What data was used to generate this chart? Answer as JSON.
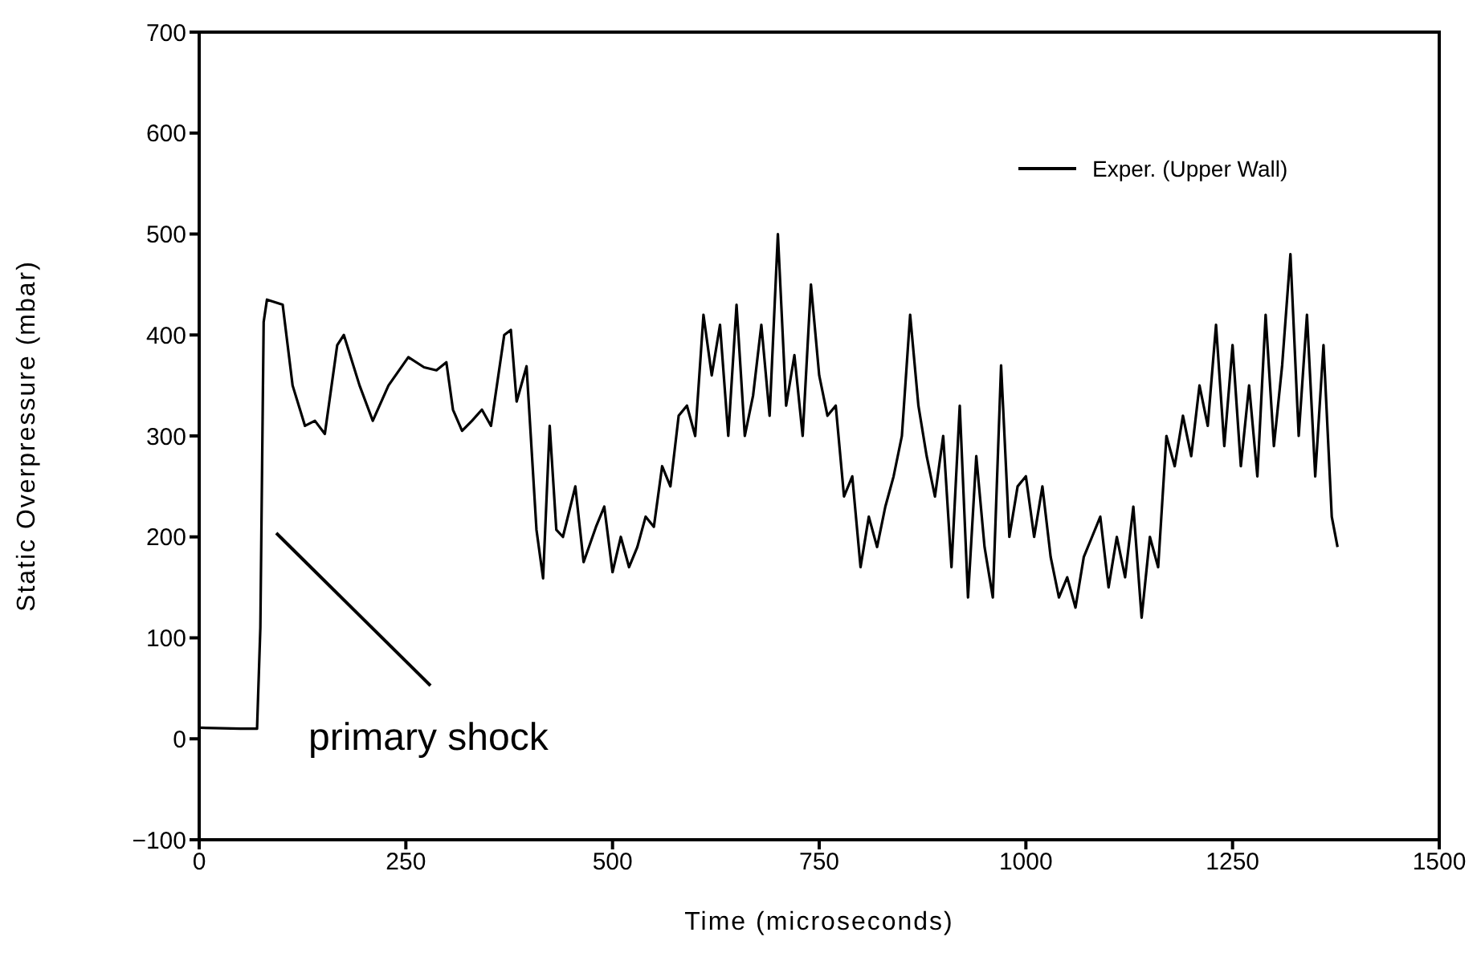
{
  "chart_data": {
    "type": "line",
    "xlabel": "Time (microseconds)",
    "ylabel": "Static Overpressure (mbar)",
    "xlim": [
      0,
      1500
    ],
    "xticks": [
      0,
      250,
      500,
      750,
      1000,
      1250,
      1500
    ],
    "ylim": [
      -100,
      700
    ],
    "yticks": [
      -100,
      0,
      100,
      200,
      300,
      400,
      500,
      600,
      700
    ],
    "legend": "top right",
    "marker": "none",
    "line_style": "solid",
    "annotations": [
      "primary shock"
    ],
    "series": [
      {
        "name": "Exper. (Upper Wall)",
        "color": "#000000",
        "x": [
          0,
          50,
          70,
          74,
          78,
          82,
          101,
          113,
          128,
          140,
          152,
          167,
          175,
          194,
          210,
          229,
          253,
          272,
          287,
          299,
          307,
          318,
          330,
          342,
          353,
          369,
          377,
          384,
          396,
          408,
          416,
          424,
          432,
          440,
          455,
          465,
          480,
          490,
          500,
          510,
          520,
          530,
          540,
          550,
          560,
          570,
          580,
          590,
          600,
          610,
          620,
          630,
          640,
          650,
          660,
          670,
          680,
          690,
          700,
          710,
          720,
          730,
          740,
          750,
          760,
          770,
          780,
          790,
          800,
          810,
          820,
          830,
          840,
          850,
          860,
          870,
          880,
          890,
          900,
          910,
          920,
          930,
          940,
          950,
          960,
          970,
          980,
          990,
          1000,
          1010,
          1020,
          1030,
          1040,
          1050,
          1060,
          1070,
          1080,
          1090,
          1100,
          1110,
          1120,
          1130,
          1140,
          1150,
          1160,
          1170,
          1180,
          1190,
          1200,
          1210,
          1220,
          1230,
          1240,
          1250,
          1260,
          1270,
          1280,
          1290,
          1300,
          1310,
          1320,
          1330,
          1340,
          1350,
          1360,
          1370,
          1377
        ],
        "values": [
          11,
          10,
          10,
          110,
          413,
          435,
          430,
          350,
          310,
          315,
          302,
          390,
          400,
          350,
          315,
          350,
          378,
          368,
          365,
          373,
          326,
          305,
          315,
          326,
          310,
          400,
          405,
          334,
          369,
          207,
          159,
          310,
          207,
          200,
          250,
          175,
          210,
          230,
          165,
          200,
          170,
          190,
          220,
          210,
          270,
          250,
          320,
          330,
          300,
          420,
          360,
          410,
          300,
          430,
          300,
          340,
          410,
          320,
          500,
          330,
          380,
          300,
          450,
          360,
          320,
          330,
          240,
          260,
          170,
          220,
          190,
          230,
          260,
          300,
          420,
          330,
          280,
          240,
          300,
          170,
          330,
          140,
          280,
          190,
          140,
          370,
          200,
          250,
          260,
          200,
          250,
          180,
          140,
          160,
          130,
          180,
          200,
          220,
          150,
          200,
          160,
          230,
          120,
          200,
          170,
          300,
          270,
          320,
          280,
          350,
          310,
          410,
          290,
          390,
          270,
          350,
          260,
          420,
          290,
          370,
          480,
          300,
          420,
          260,
          390,
          220,
          190
        ]
      }
    ]
  }
}
